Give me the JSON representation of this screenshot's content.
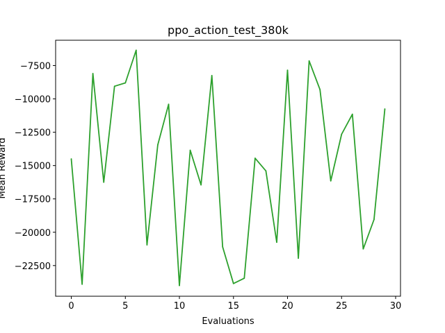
{
  "chart_data": {
    "type": "line",
    "title": "ppo_action_test_380k",
    "xlabel": "Evaluations",
    "ylabel": "Mean Reward",
    "xlim": [
      -1.45,
      30.45
    ],
    "ylim": [
      -24800,
      -5600
    ],
    "x_ticks": [
      0,
      5,
      10,
      15,
      20,
      25,
      30
    ],
    "x_tick_labels": [
      "0",
      "5",
      "10",
      "15",
      "20",
      "25",
      "30"
    ],
    "y_ticks": [
      -22500,
      -20000,
      -17500,
      -15000,
      -12500,
      -10000,
      -7500
    ],
    "y_tick_labels": [
      "−22500",
      "−20000",
      "−17500",
      "−15000",
      "−12500",
      "−10000",
      "−7500"
    ],
    "grid": false,
    "series": [
      {
        "color": "#2ca02c",
        "x": [
          0,
          1,
          2,
          3,
          4,
          5,
          6,
          7,
          8,
          9,
          10,
          11,
          12,
          13,
          14,
          15,
          16,
          17,
          18,
          19,
          20,
          21,
          22,
          23,
          24,
          25,
          26,
          27,
          28,
          29
        ],
        "values": [
          -14500,
          -23900,
          -8100,
          -16250,
          -9050,
          -8800,
          -6350,
          -20950,
          -13450,
          -10400,
          -24000,
          -13850,
          -16450,
          -8250,
          -21100,
          -23850,
          -23450,
          -14450,
          -15400,
          -20750,
          -7850,
          -21950,
          -7150,
          -9300,
          -16150,
          -12650,
          -11150,
          -21250,
          -19050,
          -10750
        ]
      }
    ]
  }
}
